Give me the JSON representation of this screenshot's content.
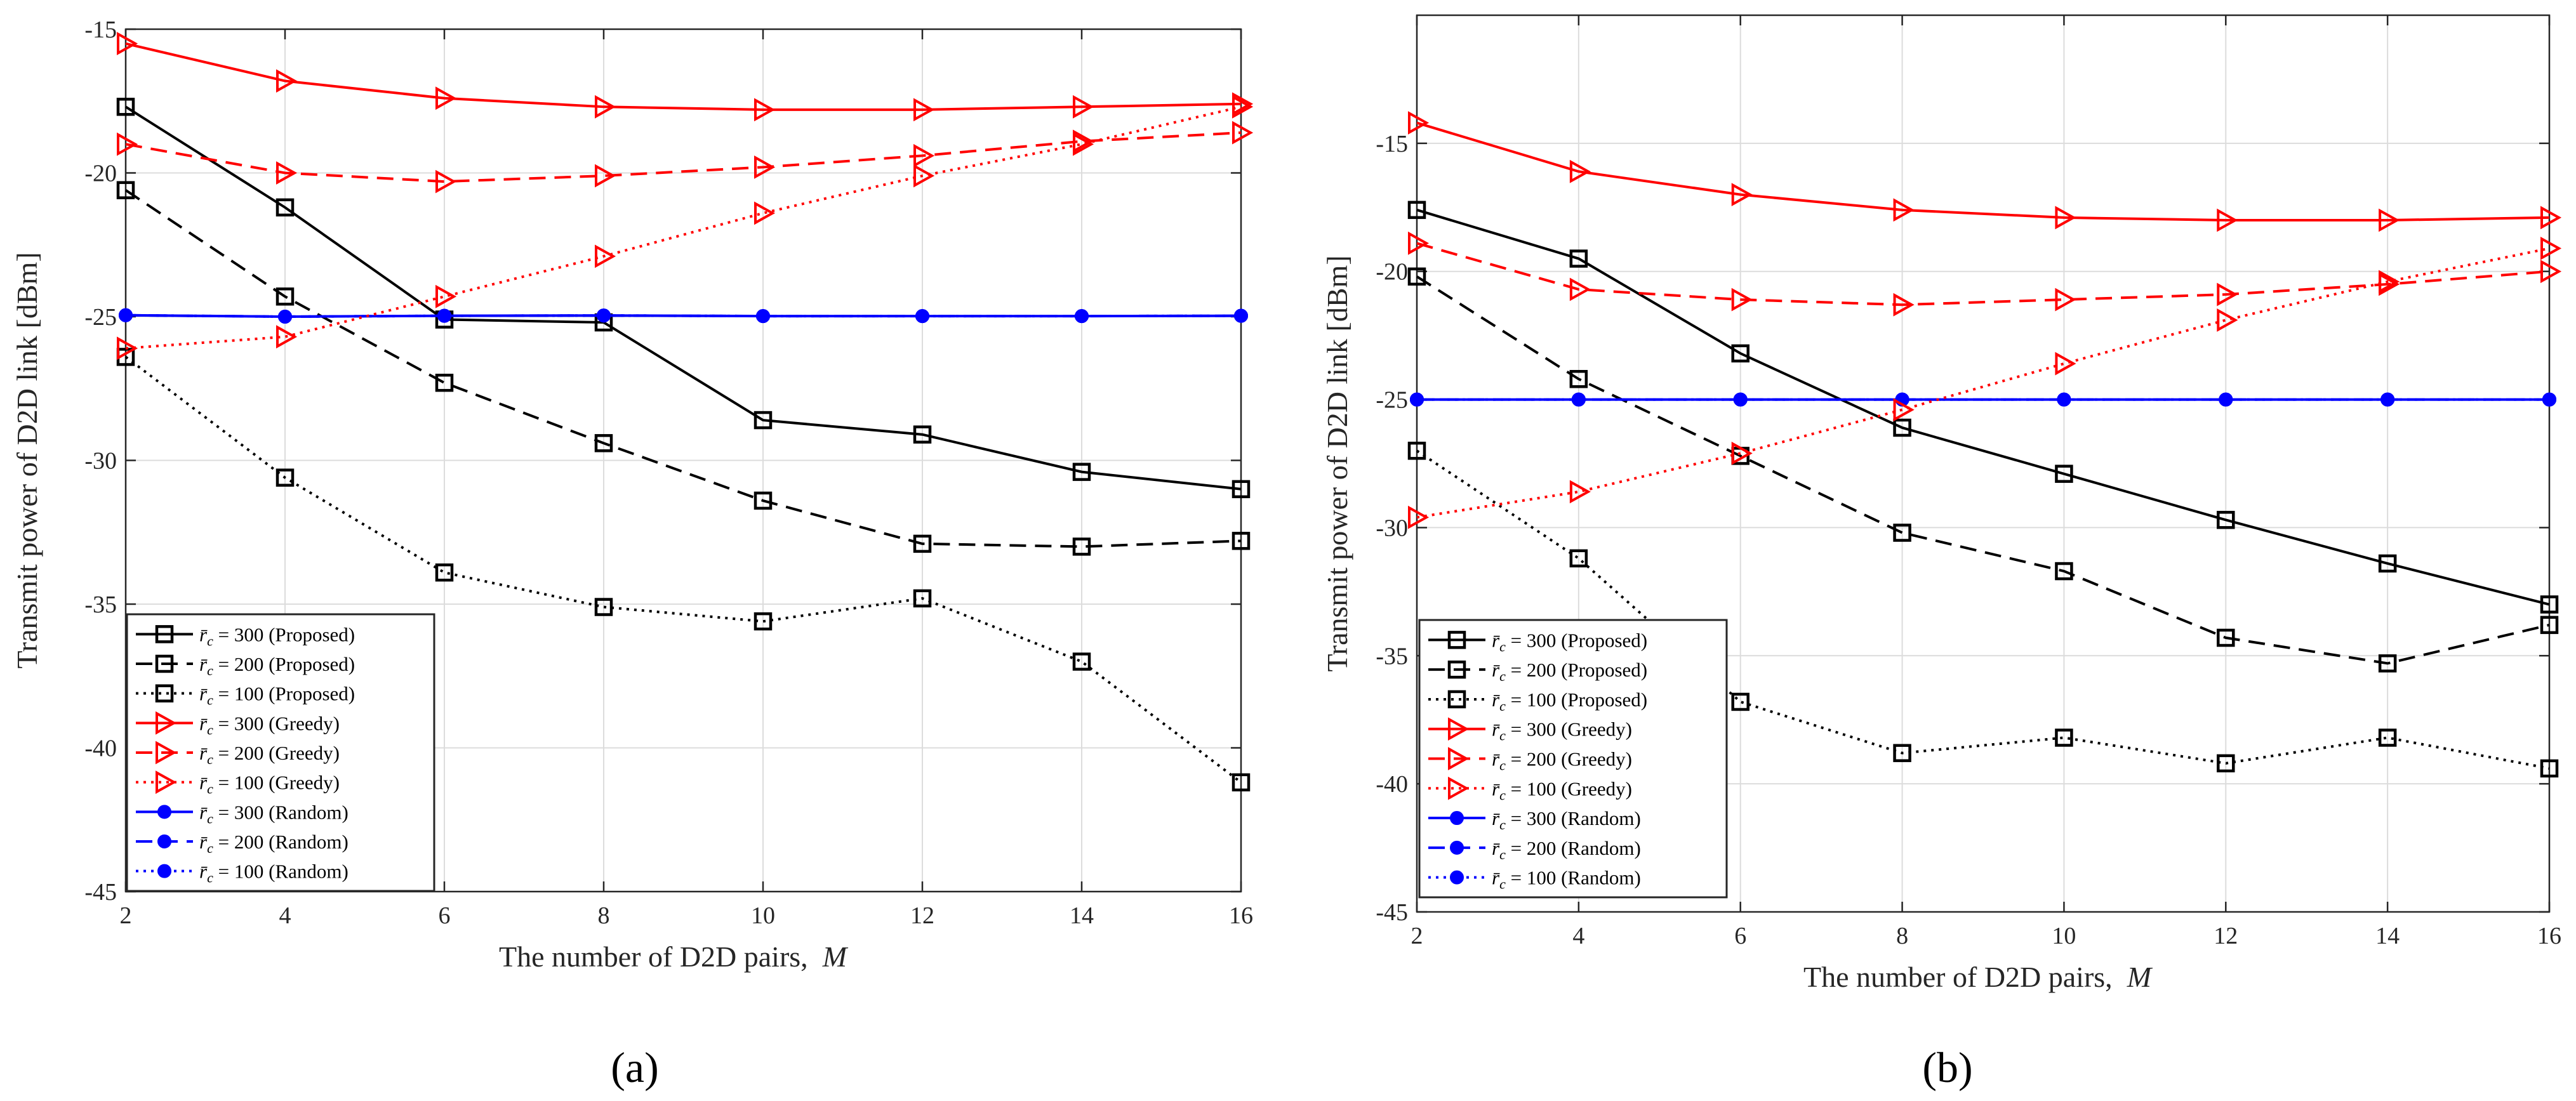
{
  "colors": {
    "proposed": "#000000",
    "greedy": "#ff0000",
    "random": "#0000ff"
  },
  "legend_entries": [
    {
      "group": "proposed",
      "rc": "300",
      "scheme": "(Proposed)",
      "style": "solid"
    },
    {
      "group": "proposed",
      "rc": "200",
      "scheme": "(Proposed)",
      "style": "dashed"
    },
    {
      "group": "proposed",
      "rc": "100",
      "scheme": "(Proposed)",
      "style": "dotted"
    },
    {
      "group": "greedy",
      "rc": "300",
      "scheme": "(Greedy)",
      "style": "solid"
    },
    {
      "group": "greedy",
      "rc": "200",
      "scheme": "(Greedy)",
      "style": "dashed"
    },
    {
      "group": "greedy",
      "rc": "100",
      "scheme": "(Greedy)",
      "style": "dotted"
    },
    {
      "group": "random",
      "rc": "300",
      "scheme": "(Random)",
      "style": "solid"
    },
    {
      "group": "random",
      "rc": "200",
      "scheme": "(Random)",
      "style": "dashed"
    },
    {
      "group": "random",
      "rc": "100",
      "scheme": "(Random)",
      "style": "dotted"
    }
  ],
  "chart_data": [
    {
      "panel": "(a)",
      "type": "line",
      "xlabel": "The number of D2D pairs,",
      "xlabel_symbol": "M",
      "ylabel": "Transmit power of D2D link [dBm]",
      "xlim": [
        2,
        16
      ],
      "ylim": [
        -45,
        -15
      ],
      "xticks": [
        2,
        4,
        6,
        8,
        10,
        12,
        14,
        16
      ],
      "yticks": [
        -15,
        -20,
        -25,
        -30,
        -35,
        -40,
        -45
      ],
      "x": [
        2,
        4,
        6,
        8,
        10,
        12,
        14,
        16
      ],
      "legend_position": "bottom-left",
      "series": [
        {
          "name": "r̄c = 300 (Proposed)",
          "values": [
            -17.7,
            -21.2,
            -25.1,
            -25.2,
            -28.6,
            -29.1,
            -30.4,
            -31.0
          ]
        },
        {
          "name": "r̄c = 200 (Proposed)",
          "values": [
            -20.6,
            -24.3,
            -27.3,
            -29.4,
            -31.4,
            -32.9,
            -33.0,
            -32.8
          ]
        },
        {
          "name": "r̄c = 100 (Proposed)",
          "values": [
            -26.4,
            -30.6,
            -33.9,
            -35.1,
            -35.6,
            -34.8,
            -37.0,
            -41.2
          ]
        },
        {
          "name": "r̄c = 300 (Greedy)",
          "values": [
            -15.5,
            -16.8,
            -17.4,
            -17.7,
            -17.8,
            -17.8,
            -17.7,
            -17.6
          ]
        },
        {
          "name": "r̄c = 200 (Greedy)",
          "values": [
            -19.0,
            -20.0,
            -20.3,
            -20.1,
            -19.8,
            -19.4,
            -18.9,
            -18.6
          ]
        },
        {
          "name": "r̄c = 100 (Greedy)",
          "values": [
            -26.1,
            -25.7,
            -24.3,
            -22.9,
            -21.4,
            -20.1,
            -19.0,
            -17.7
          ]
        },
        {
          "name": "r̄c = 300 (Random)",
          "values": [
            -24.95,
            -25.0,
            -24.97,
            -24.96,
            -24.98,
            -24.98,
            -24.98,
            -24.97
          ]
        },
        {
          "name": "r̄c = 200 (Random)",
          "values": [
            -24.95,
            -25.0,
            -24.97,
            -24.96,
            -24.98,
            -24.98,
            -24.98,
            -24.97
          ]
        },
        {
          "name": "r̄c = 100 (Random)",
          "values": [
            -24.95,
            -25.0,
            -24.97,
            -24.96,
            -24.98,
            -24.98,
            -24.98,
            -24.97
          ]
        }
      ]
    },
    {
      "panel": "(b)",
      "type": "line",
      "xlabel": "The number of D2D pairs,",
      "xlabel_symbol": "M",
      "ylabel": "Transmit power of D2D link [dBm]",
      "xlim": [
        2,
        16
      ],
      "ylim": [
        -45,
        -10
      ],
      "xticks": [
        2,
        4,
        6,
        8,
        10,
        12,
        14,
        16
      ],
      "yticks": [
        -15,
        -20,
        -25,
        -30,
        -35,
        -40,
        -45
      ],
      "x": [
        2,
        4,
        6,
        8,
        10,
        12,
        14,
        16
      ],
      "legend_position": "bottom-left",
      "series": [
        {
          "name": "r̄c = 300 (Proposed)",
          "values": [
            -17.6,
            -19.5,
            -23.2,
            -26.1,
            -27.9,
            -29.7,
            -31.4,
            -33.0
          ]
        },
        {
          "name": "r̄c = 200 (Proposed)",
          "values": [
            -20.2,
            -24.2,
            -27.2,
            -30.2,
            -31.7,
            -34.3,
            -35.3,
            -33.8
          ]
        },
        {
          "name": "r̄c = 100 (Proposed)",
          "values": [
            -27.0,
            -31.2,
            -36.8,
            -38.8,
            -38.2,
            -39.2,
            -38.2,
            -39.4
          ]
        },
        {
          "name": "r̄c = 300 (Greedy)",
          "values": [
            -14.2,
            -16.1,
            -17.0,
            -17.6,
            -17.9,
            -18.0,
            -18.0,
            -17.9
          ]
        },
        {
          "name": "r̄c = 200 (Greedy)",
          "values": [
            -18.9,
            -20.7,
            -21.1,
            -21.3,
            -21.1,
            -20.9,
            -20.5,
            -20.0
          ]
        },
        {
          "name": "r̄c = 100 (Greedy)",
          "values": [
            -29.6,
            -28.6,
            -27.1,
            -25.4,
            -23.6,
            -21.9,
            -20.4,
            -19.1
          ]
        },
        {
          "name": "r̄c = 300 (Random)",
          "values": [
            -25.0,
            -25.0,
            -25.0,
            -25.0,
            -25.0,
            -25.0,
            -25.0,
            -25.0
          ]
        },
        {
          "name": "r̄c = 200 (Random)",
          "values": [
            -25.0,
            -25.0,
            -25.0,
            -25.0,
            -25.0,
            -25.0,
            -25.0,
            -25.0
          ]
        },
        {
          "name": "r̄c = 100 (Random)",
          "values": [
            -25.0,
            -25.0,
            -25.0,
            -25.0,
            -25.0,
            -25.0,
            -25.0,
            -25.0
          ]
        }
      ]
    }
  ]
}
